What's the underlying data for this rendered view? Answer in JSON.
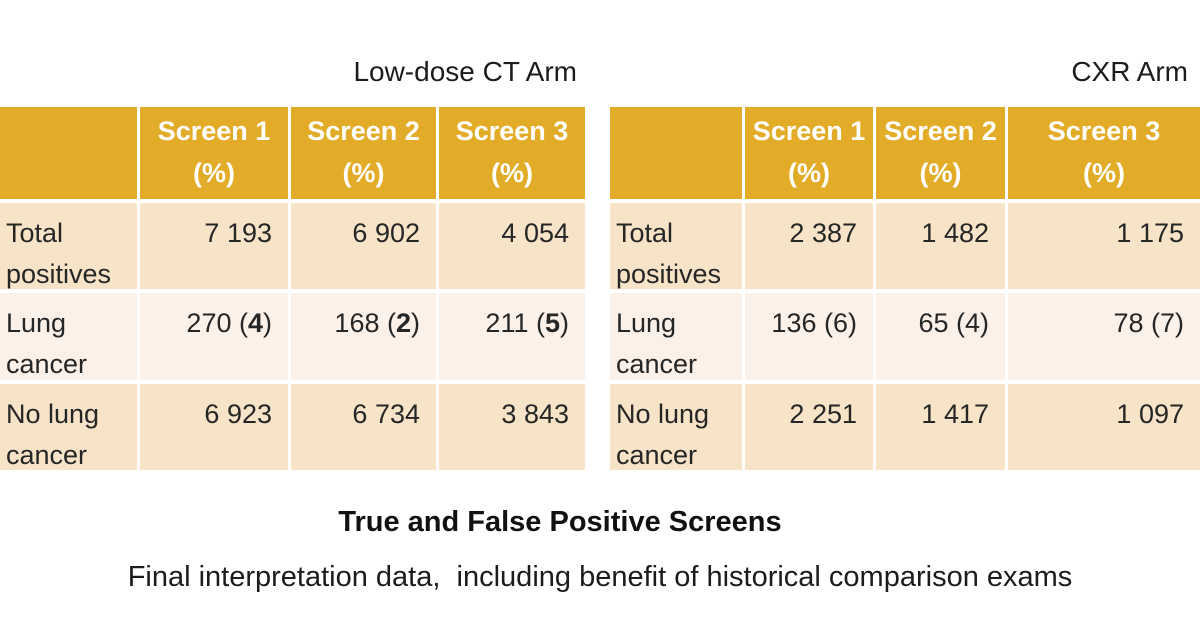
{
  "colors": {
    "header_bg": "#E3AC28",
    "row_bg_odd": "#F7E3C7",
    "row_bg_even": "#FBF1E9",
    "header_text": "#FFFFFF",
    "body_text": "#1C1C1C"
  },
  "tables": [
    {
      "title": "Low-dose CT Arm",
      "columns": [
        {
          "line1": "Screen 1",
          "line2": "(%)"
        },
        {
          "line1": "Screen 2",
          "line2": "(%)"
        },
        {
          "line1": "Screen 3",
          "line2": "(%)"
        }
      ],
      "rows": [
        {
          "label": "Total positives",
          "cells": [
            {
              "text": "7 193"
            },
            {
              "text": "6 902"
            },
            {
              "text": "4 054"
            }
          ]
        },
        {
          "label": "Lung cancer",
          "cells": [
            {
              "text": "270",
              "paren": "4",
              "bold_paren": true
            },
            {
              "text": "168",
              "paren": "2",
              "bold_paren": true
            },
            {
              "text": "211",
              "paren": "5",
              "bold_paren": true
            }
          ]
        },
        {
          "label": "No lung cancer",
          "cells": [
            {
              "text": "6 923"
            },
            {
              "text": "6 734"
            },
            {
              "text": "3 843"
            }
          ]
        }
      ]
    },
    {
      "title": "CXR Arm",
      "columns": [
        {
          "line1": "Screen 1",
          "line2": "(%)"
        },
        {
          "line1": "Screen 2",
          "line2": "(%)"
        },
        {
          "line1": "Screen 3",
          "line2": "(%)"
        }
      ],
      "rows": [
        {
          "label": "Total positives",
          "cells": [
            {
              "text": "2 387"
            },
            {
              "text": "1 482"
            },
            {
              "text": "1 175"
            }
          ]
        },
        {
          "label": "Lung cancer",
          "cells": [
            {
              "text": "136",
              "paren": "6",
              "bold_paren": false
            },
            {
              "text": "65",
              "paren": "4",
              "bold_paren": false
            },
            {
              "text": "78",
              "paren": "7",
              "bold_paren": false
            }
          ]
        },
        {
          "label": "No lung cancer",
          "cells": [
            {
              "text": "2 251"
            },
            {
              "text": "1 417"
            },
            {
              "text": "1 097"
            }
          ]
        }
      ]
    }
  ],
  "footer": {
    "title": "True and False Positive Screens",
    "subtitle": "Final interpretation data,  including benefit of historical comparison exams"
  },
  "chart_data": [
    {
      "type": "table",
      "title": "Low-dose CT Arm",
      "columns": [
        "",
        "Screen 1 (%)",
        "Screen 2 (%)",
        "Screen 3 (%)"
      ],
      "rows": [
        [
          "Total positives",
          "7 193",
          "6 902",
          "4 054"
        ],
        [
          "Lung cancer",
          "270 (4)",
          "168 (2)",
          "211 (5)"
        ],
        [
          "No lung cancer",
          "6 923",
          "6 734",
          "3 843"
        ]
      ]
    },
    {
      "type": "table",
      "title": "CXR Arm",
      "columns": [
        "",
        "Screen 1 (%)",
        "Screen 2 (%)",
        "Screen 3 (%)"
      ],
      "rows": [
        [
          "Total positives",
          "2 387",
          "1 482",
          "1 175"
        ],
        [
          "Lung cancer",
          "136 (6)",
          "65 (4)",
          "78 (7)"
        ],
        [
          "No lung cancer",
          "2 251",
          "1 417",
          "1 097"
        ]
      ]
    }
  ]
}
